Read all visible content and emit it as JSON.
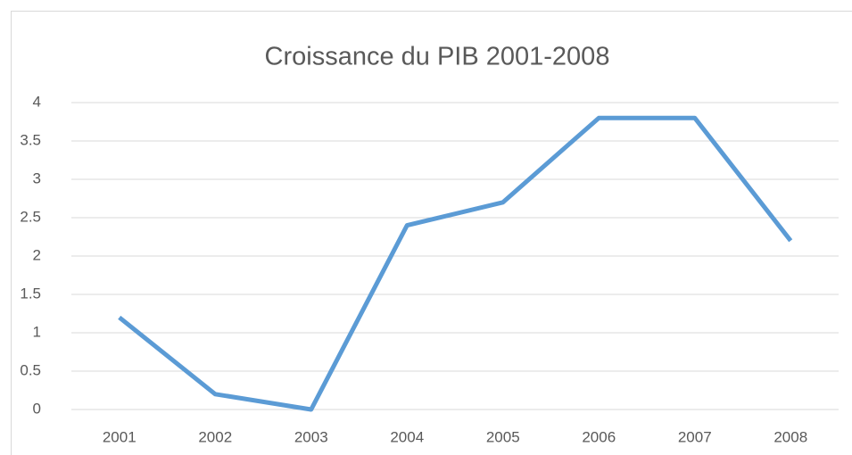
{
  "chart_data": {
    "type": "line",
    "title": "Croissance du PIB 2001-2008",
    "categories": [
      "2001",
      "2002",
      "2003",
      "2004",
      "2005",
      "2006",
      "2007",
      "2008"
    ],
    "series": [
      {
        "name": "PIB",
        "color": "#5b9bd5",
        "values": [
          1.2,
          0.2,
          0,
          2.4,
          2.7,
          3.8,
          3.8,
          2.2
        ]
      }
    ],
    "ylim": [
      0,
      4
    ],
    "yticks": [
      0,
      0.5,
      1,
      1.5,
      2,
      2.5,
      3,
      3.5,
      4
    ],
    "grid": true
  }
}
